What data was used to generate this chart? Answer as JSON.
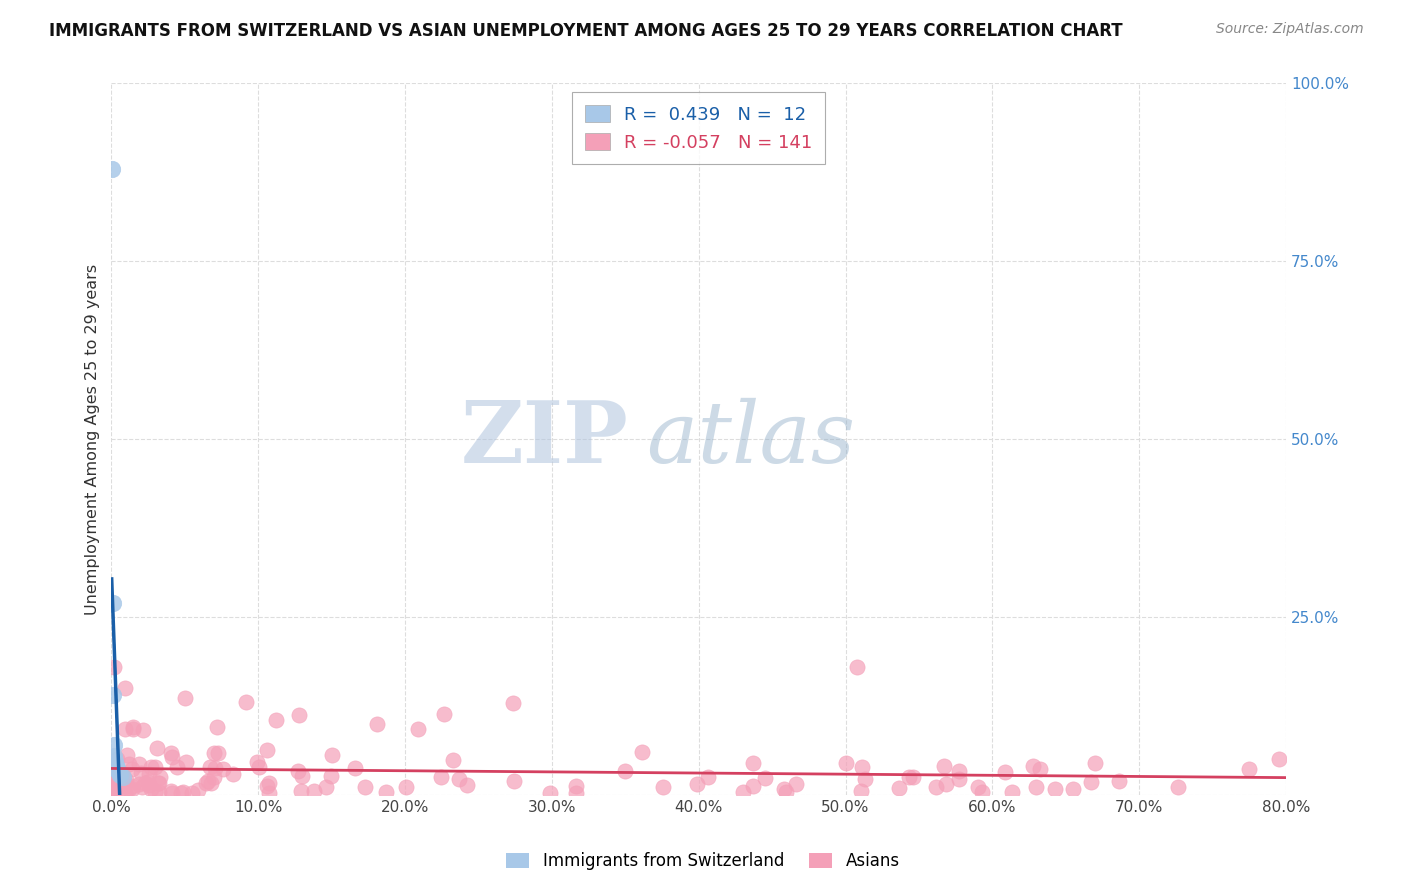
{
  "title": "IMMIGRANTS FROM SWITZERLAND VS ASIAN UNEMPLOYMENT AMONG AGES 25 TO 29 YEARS CORRELATION CHART",
  "source": "Source: ZipAtlas.com",
  "ylabel": "Unemployment Among Ages 25 to 29 years",
  "xlim": [
    0.0,
    0.8
  ],
  "ylim": [
    0.0,
    1.0
  ],
  "xtick_vals": [
    0.0,
    0.1,
    0.2,
    0.3,
    0.4,
    0.5,
    0.6,
    0.7,
    0.8
  ],
  "xticklabels": [
    "0.0%",
    "10.0%",
    "20.0%",
    "30.0%",
    "40.0%",
    "50.0%",
    "60.0%",
    "70.0%",
    "80.0%"
  ],
  "ytick_vals": [
    0.0,
    0.25,
    0.5,
    0.75,
    1.0
  ],
  "yticklabels": [
    "",
    "25.0%",
    "50.0%",
    "75.0%",
    "100.0%"
  ],
  "color_swiss_scatter": "#a8c8e8",
  "color_asian_scatter": "#f4a0b8",
  "color_swiss_line": "#1a5fa8",
  "color_asian_line": "#d44060",
  "color_yticklabel": "#4488cc",
  "watermark_zip_color": "#b8c8dc",
  "watermark_atlas_color": "#9ab8d4",
  "r_swiss": 0.439,
  "n_swiss": 12,
  "r_asian": -0.057,
  "n_asian": 141,
  "swiss_x": [
    0.0004,
    0.0008,
    0.001,
    0.0015,
    0.002,
    0.0025,
    0.003,
    0.0035,
    0.004,
    0.005,
    0.006,
    0.008
  ],
  "swiss_y": [
    0.88,
    0.27,
    0.14,
    0.07,
    0.055,
    0.048,
    0.042,
    0.038,
    0.035,
    0.03,
    0.028,
    0.025
  ],
  "grid_color": "#dddddd",
  "grid_style": "--"
}
